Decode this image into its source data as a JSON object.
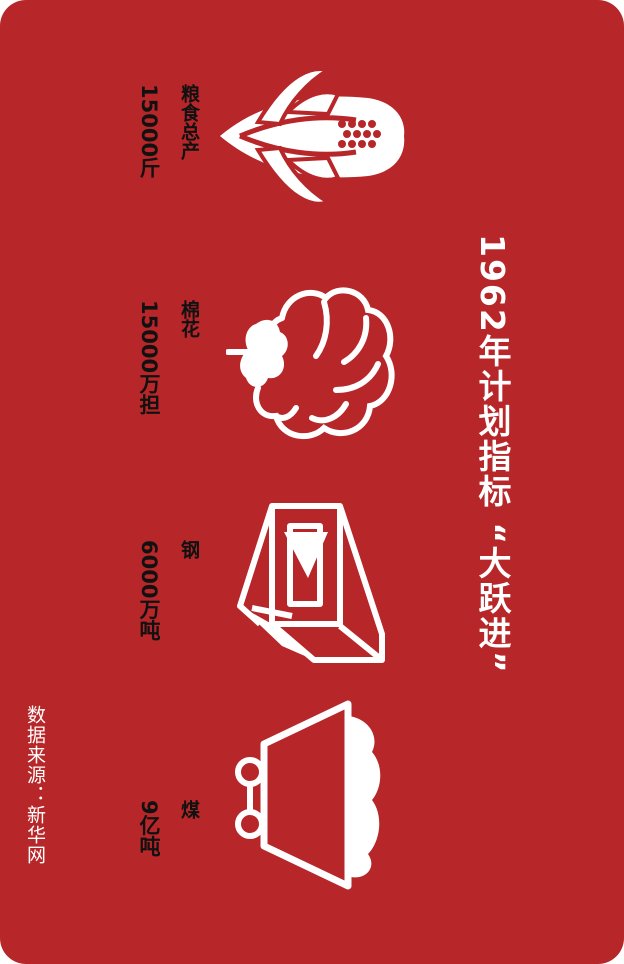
{
  "title": "1962年计划指标 “大跃进”",
  "items": [
    {
      "label": "粮食总产",
      "value": "15000斤",
      "icon": "corn-icon"
    },
    {
      "label": "棉花",
      "value": "15000万担",
      "icon": "cotton-icon"
    },
    {
      "label": "钢",
      "value": "6000万吨",
      "icon": "steel-beam-icon"
    },
    {
      "label": "煤",
      "value": "9亿吨",
      "icon": "coal-cart-icon"
    }
  ],
  "source": "数据来源：新华网",
  "colors": {
    "background": "#b72628",
    "icon": "#ffffff",
    "text": "#111111"
  }
}
